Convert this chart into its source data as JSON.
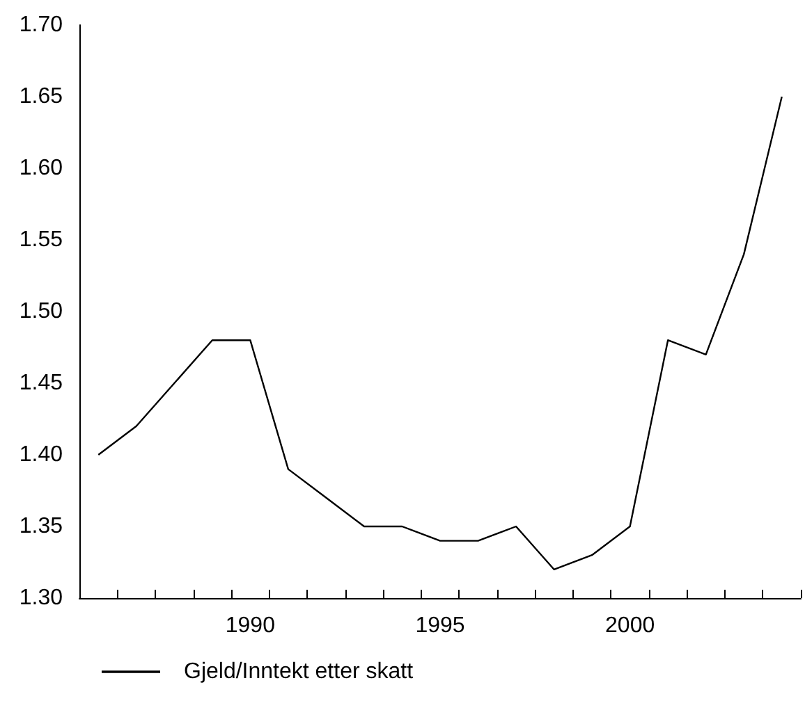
{
  "chart_data": {
    "type": "line",
    "categories": [
      null,
      null,
      null,
      null,
      "1990",
      null,
      null,
      null,
      null,
      "1995",
      null,
      null,
      null,
      null,
      "2000",
      null,
      null,
      null,
      null
    ],
    "series": [
      {
        "name": "Gjeld/Inntekt etter skatt",
        "color": "#000000",
        "values": [
          1.4,
          1.42,
          1.45,
          1.48,
          1.48,
          1.39,
          1.37,
          1.35,
          1.35,
          1.34,
          1.34,
          1.35,
          1.32,
          1.33,
          1.35,
          1.48,
          1.47,
          1.54,
          1.65
        ]
      }
    ],
    "ylim": [
      1.3,
      1.7
    ],
    "yticks": [
      {
        "value": 1.3,
        "label": "1.30"
      },
      {
        "value": 1.35,
        "label": "1.35"
      },
      {
        "value": 1.4,
        "label": "1.40"
      },
      {
        "value": 1.45,
        "label": "1.45"
      },
      {
        "value": 1.5,
        "label": "1.50"
      },
      {
        "value": 1.55,
        "label": "1.55"
      },
      {
        "value": 1.6,
        "label": "1.60"
      },
      {
        "value": 1.65,
        "label": "1.65"
      },
      {
        "value": 1.7,
        "label": "1.70"
      }
    ],
    "grid": false,
    "legend": "bottom left",
    "marker": "none",
    "line_style": "solid"
  }
}
